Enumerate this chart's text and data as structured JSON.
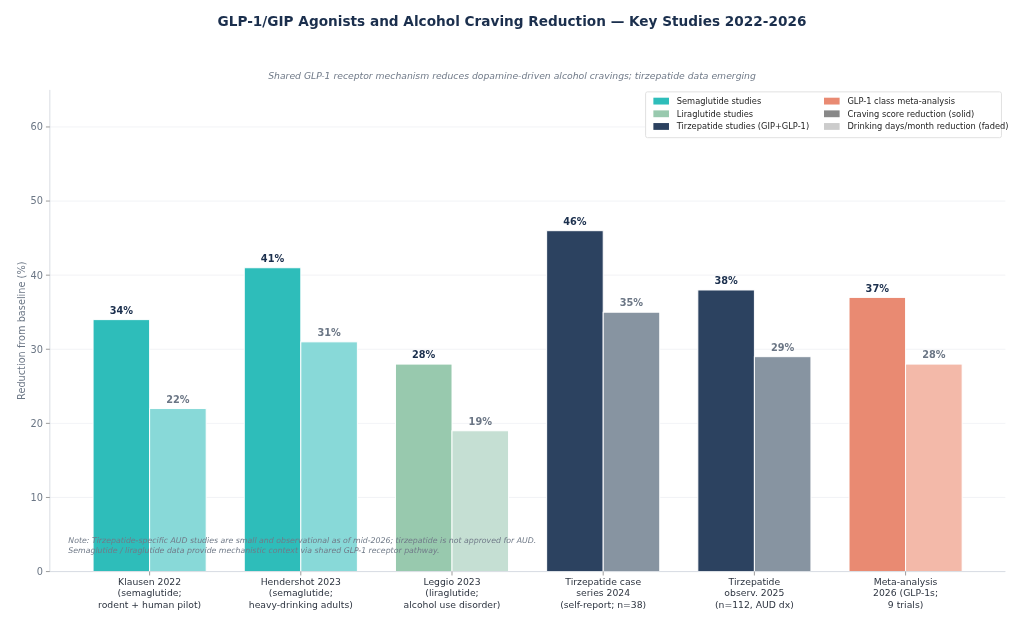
{
  "chart_data": {
    "type": "bar",
    "title": "GLP-1/GIP Agonists and Alcohol Craving Reduction — Key Studies 2022-2026",
    "subtitle": "Shared GLP-1 receptor mechanism reduces dopamine-driven alcohol cravings; tirzepatide data emerging",
    "ylabel": "Reduction from baseline (%)",
    "categories": [
      "Klausen 2022\n(semaglutide;\nrodent + human pilot)",
      "Hendershot 2023\n(semaglutide;\nheavy-drinking adults)",
      "Leggio 2023\n(liraglutide;\nalcohol use disorder)",
      "Tirzepatide case\nseries 2024\n(self-report; n=38)",
      "Tirzepatide\nobserv. 2025\n(n=112, AUD dx)",
      "Meta-analysis\n2026 (GLP-1s;\n9 trials)"
    ],
    "series": [
      {
        "name": "Semaglutide studies",
        "color": "#2ebdba",
        "values": [
          34,
          41,
          null,
          null,
          null,
          null
        ],
        "value_labels": [
          "34%",
          "41%",
          null,
          null,
          null,
          null
        ]
      },
      {
        "color": "#88d9d8",
        "values": [
          22,
          31,
          null,
          null,
          null,
          null
        ],
        "value_labels": [
          "22%",
          "31%",
          null,
          null,
          null,
          null
        ]
      },
      {
        "name": "Liraglutide studies",
        "color": "#98c9ae",
        "values": [
          null,
          null,
          28,
          null,
          null,
          null
        ],
        "value_labels": [
          null,
          null,
          "28%",
          null,
          null,
          null
        ]
      },
      {
        "color": "#c5dfd3",
        "values": [
          null,
          null,
          19,
          null,
          null,
          null
        ],
        "value_labels": [
          null,
          null,
          "19%",
          null,
          null,
          null
        ]
      },
      {
        "name": "Tirzepatide studies (GIP+GLP-1)",
        "color": "#2c4260",
        "values": [
          null,
          null,
          null,
          46,
          38,
          null
        ],
        "value_labels": [
          null,
          null,
          null,
          "46%",
          "38%",
          null
        ]
      },
      {
        "color": "#8794a1",
        "values": [
          null,
          null,
          null,
          35,
          29,
          null
        ],
        "value_labels": [
          null,
          null,
          null,
          "35%",
          "29%",
          null
        ]
      },
      {
        "name": "GLP-1 class meta-analysis",
        "color": "#e98a72",
        "values": [
          null,
          null,
          null,
          null,
          null,
          37
        ],
        "value_labels": [
          null,
          null,
          null,
          null,
          null,
          "37%"
        ]
      },
      {
        "color": "#f3b9a9",
        "values": [
          null,
          null,
          null,
          null,
          null,
          28
        ],
        "value_labels": [
          null,
          null,
          null,
          null,
          null,
          "28%"
        ]
      }
    ],
    "annotations": [
      "Craving score reduction (solid)",
      "Drinking days/month reduction (faded)",
      "Note: Tirzepatide-specific AUD studies are small and observational as of mid-2026; tirzepatide is not approved for AUD.\nSemaglutide / liraglutide data provide mechanistic context via shared GLP-1 receptor pathway."
    ],
    "ylim": [
      0,
      65
    ],
    "yticks": [
      0,
      10,
      20,
      30,
      40,
      50,
      60
    ],
    "grid": "y",
    "legend": "top right"
  }
}
